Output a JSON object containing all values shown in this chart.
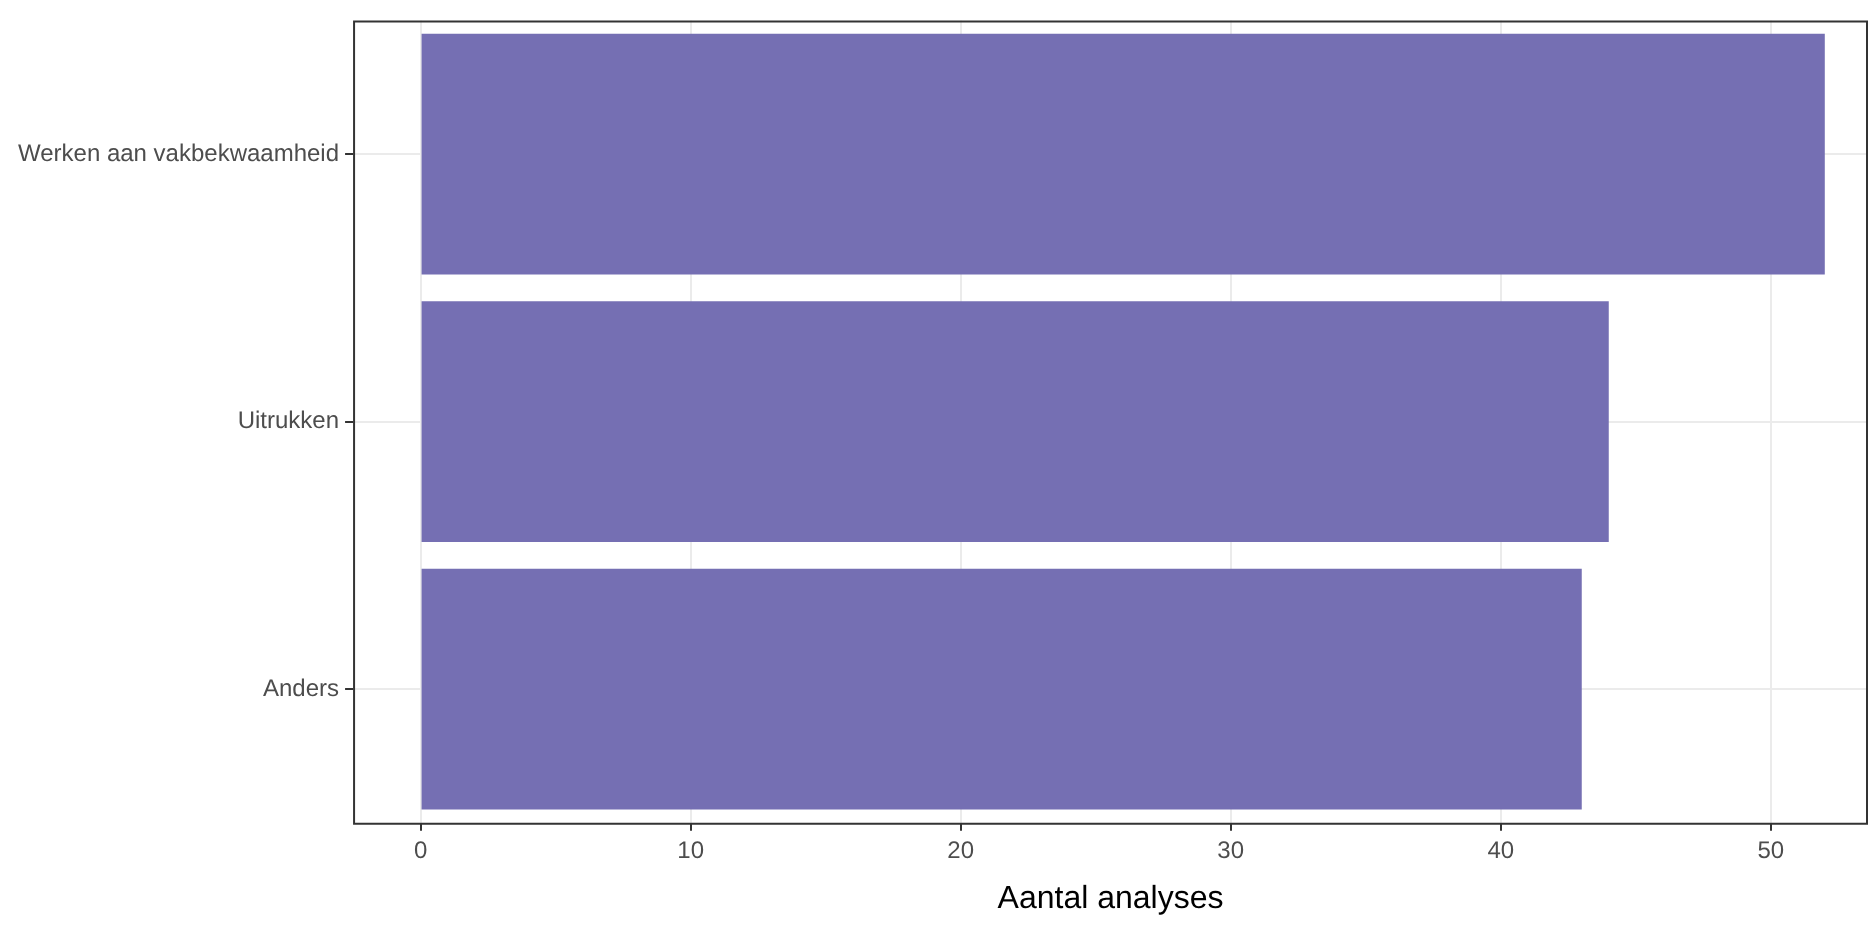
{
  "chart_data": {
    "type": "bar",
    "orientation": "horizontal",
    "categories": [
      "Werken aan vakbekwaamheid",
      "Uitrukken",
      "Anders"
    ],
    "values": [
      52,
      44,
      43
    ],
    "color": "#756fb3",
    "xlabel": "Aantal analyses",
    "xlim": [
      -2.5,
      53.6
    ],
    "xticks": [
      0,
      10,
      20,
      30,
      40,
      50
    ],
    "grid": true,
    "legend": false
  }
}
